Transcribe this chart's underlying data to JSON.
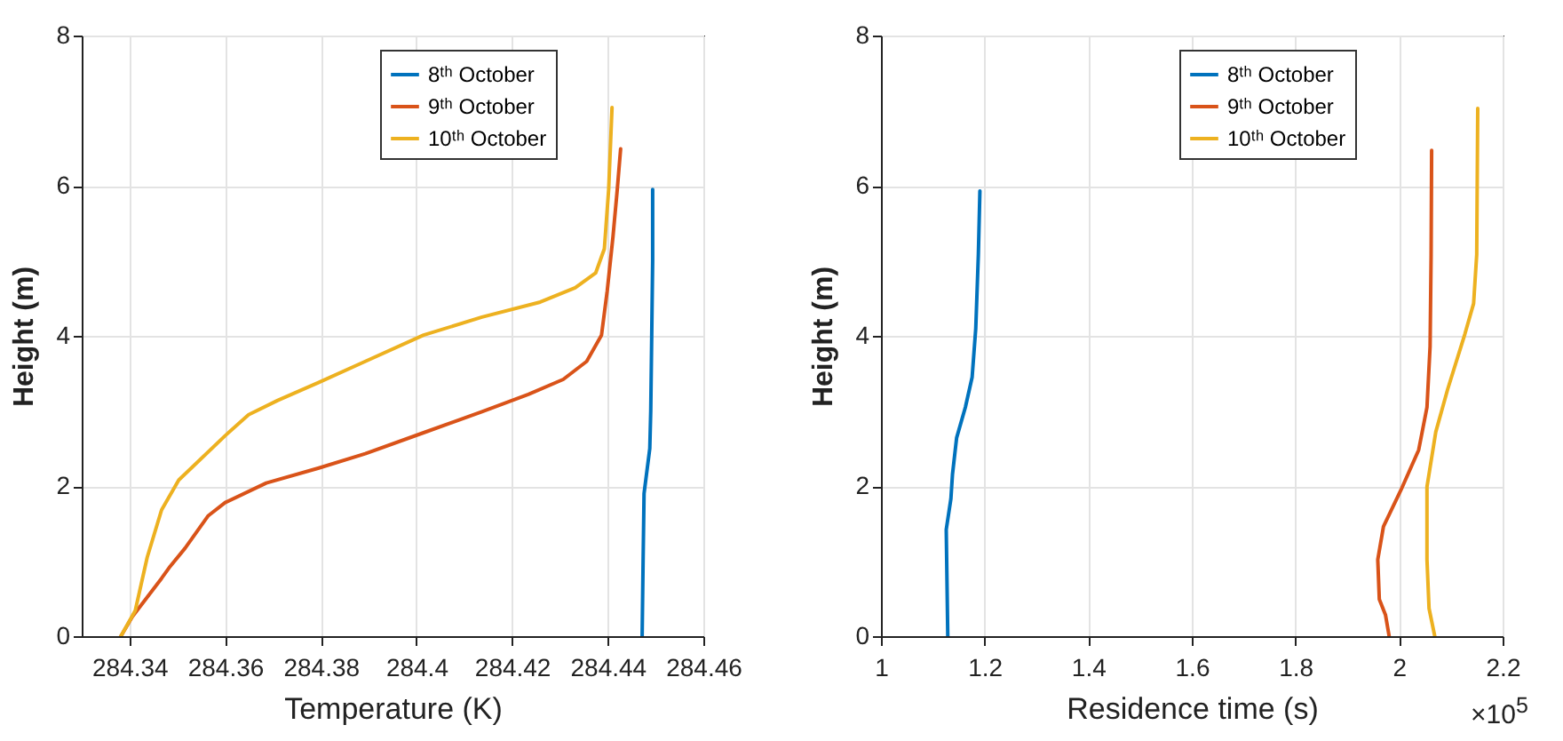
{
  "chart_data": [
    {
      "type": "line",
      "xlabel": "Temperature (K)",
      "ylabel": "Height (m)",
      "xlim": [
        284.33,
        284.46
      ],
      "xticks": [
        284.34,
        284.36,
        284.38,
        284.4,
        284.42,
        284.44,
        284.46
      ],
      "ylim": [
        0,
        8
      ],
      "yticks": [
        0,
        2,
        4,
        6,
        8
      ],
      "grid": true,
      "legend": "top right",
      "line_style": "solid",
      "series": [
        {
          "name": "8ᵗʰ October",
          "color": "#0072bd",
          "x": [
            284.4472,
            284.4474,
            284.4476,
            284.448,
            284.4488,
            284.449,
            284.4492,
            284.4494,
            284.4494
          ],
          "values": [
            0,
            1,
            1.9,
            2.1,
            2.5,
            3,
            4,
            5,
            5.95
          ]
        },
        {
          "name": "9ᵗʰ October",
          "color": "#d95319",
          "x": [
            284.3382,
            284.3406,
            284.3467,
            284.3485,
            284.3516,
            284.3564,
            284.36,
            284.3686,
            284.3796,
            284.3893,
            284.4015,
            284.4137,
            284.4234,
            284.4307,
            284.4356,
            284.4387,
            284.4399,
            284.4411,
            284.442,
            284.4427
          ],
          "values": [
            0,
            0.26,
            0.77,
            0.93,
            1.17,
            1.6,
            1.78,
            2.04,
            2.24,
            2.43,
            2.71,
            2.99,
            3.22,
            3.42,
            3.66,
            4.01,
            4.6,
            5.32,
            5.95,
            6.49
          ]
        },
        {
          "name": "10ᵗʰ October",
          "color": "#edb120",
          "x": [
            284.3382,
            284.3412,
            284.3437,
            284.3467,
            284.3503,
            284.36,
            284.3649,
            284.371,
            284.3796,
            284.3893,
            284.4015,
            284.4137,
            284.4259,
            284.4332,
            284.4375,
            284.4393,
            284.4402,
            284.4409
          ],
          "values": [
            0,
            0.34,
            1.05,
            1.68,
            2.08,
            2.67,
            2.95,
            3.14,
            3.38,
            3.66,
            4.01,
            4.25,
            4.45,
            4.64,
            4.84,
            5.16,
            5.95,
            7.04
          ]
        }
      ]
    },
    {
      "type": "line",
      "xlabel": "Residence time (s)",
      "ylabel": "Height (m)",
      "xlim": [
        1,
        2.2
      ],
      "xticks": [
        1,
        1.2,
        1.4,
        1.6,
        1.8,
        2,
        2.2
      ],
      "ylim": [
        0,
        8
      ],
      "yticks": [
        0,
        2,
        4,
        6,
        8
      ],
      "grid": true,
      "legend": "top right",
      "line_style": "solid",
      "annotations": [
        "×10$^{5}$"
      ],
      "series": [
        {
          "name": "8ᵗʰ October",
          "color": "#0072bd",
          "x": [
            1.129,
            1.126,
            1.135,
            1.138,
            1.146,
            1.163,
            1.176,
            1.183,
            1.188,
            1.191
          ],
          "values": [
            0,
            1.42,
            1.83,
            2.15,
            2.64,
            3.05,
            3.45,
            4.1,
            5.08,
            5.93
          ]
        },
        {
          "name": "9ᵗʰ October",
          "color": "#d95319",
          "x": [
            1.981,
            1.974,
            1.962,
            1.959,
            1.97,
            2.004,
            2.038,
            2.054,
            2.06,
            2.062,
            2.063
          ],
          "values": [
            0,
            0.28,
            0.49,
            1.02,
            1.46,
            1.95,
            2.48,
            3.05,
            3.86,
            5.08,
            6.47
          ]
        },
        {
          "name": "10ᵗʰ October",
          "color": "#edb120",
          "x": [
            2.069,
            2.058,
            2.054,
            2.054,
            2.071,
            2.094,
            2.127,
            2.144,
            2.15,
            2.152
          ],
          "values": [
            0,
            0.37,
            1.02,
            1.99,
            2.72,
            3.29,
            4.02,
            4.43,
            5.08,
            7.03
          ]
        }
      ]
    }
  ]
}
